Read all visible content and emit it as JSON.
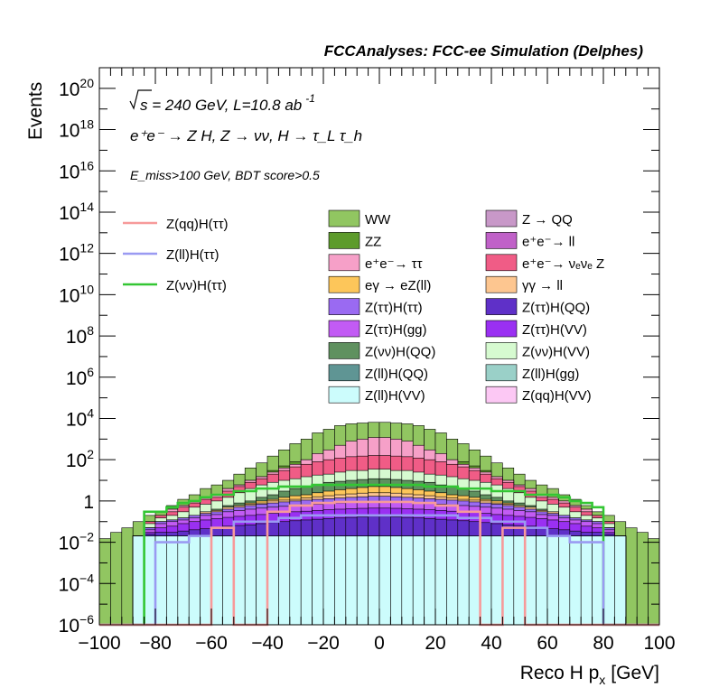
{
  "header": {
    "title": "FCCAnalyses: FCC-ee Simulation (Delphes)"
  },
  "annotations": {
    "sqrt_s": "s = 240 GeV, L=10.8 ab",
    "sqrt_s_exponent": "-1",
    "process": "e⁺e⁻ → Z H, Z → νν, H → τ_L τ_h",
    "selection": "E_miss>100 GeV, BDT score>0.5"
  },
  "colors": {
    "WW": "#91c661",
    "ZZ": "#5d9b2b",
    "ee_tautau": "#f6a0c8",
    "ZZ_nuenue": "#f05c86",
    "Z_QQ": "#c898c8",
    "ee_ll": "#c061c8",
    "egamma_eZ": "#fdc65a",
    "gammagamma_ll": "#fdc690",
    "ZtautauHtautau": "#9a6af2",
    "ZtautauHQQ": "#5f30c8",
    "ZtautauHgg": "#c25bf4",
    "ZtautauHVV": "#9a30f2",
    "ZnunuHQQ": "#5f915f",
    "ZnunuHVV": "#d6fad0",
    "ZllHQQ": "#5f9594",
    "ZllHgg": "#9ad0c8",
    "ZllHVV": "#ccfcfc",
    "ZqqHVV": "#fcc8f4",
    "line_ZqqHtautau": "#f79a9a",
    "line_ZllHtautau": "#9a9af2",
    "line_ZnunuHtautau": "#33c633"
  },
  "chart_data": {
    "type": "histogram-stacked-with-lines",
    "xlabel": "Reco H p",
    "xlabel_subscript": "x",
    "xlabel_unit": "[GeV]",
    "ylabel": "Events",
    "xlim": [
      -100,
      100
    ],
    "ylim": [
      1e-06,
      1e+21
    ],
    "yscale": "log",
    "x_tick_labels": [
      "−100",
      "−80",
      "−60",
      "−40",
      "−20",
      "0",
      "20",
      "40",
      "60",
      "80",
      "100"
    ],
    "y_tick_labels": [
      {
        "base": "10",
        "exp": "−6",
        "value": 1e-06
      },
      {
        "base": "10",
        "exp": "−4",
        "value": 0.0001
      },
      {
        "base": "10",
        "exp": "−2",
        "value": 0.01
      },
      {
        "base": "1",
        "exp": "",
        "value": 1
      },
      {
        "base": "10",
        "exp": "2",
        "value": 100.0
      },
      {
        "base": "10",
        "exp": "4",
        "value": 10000.0
      },
      {
        "base": "10",
        "exp": "6",
        "value": 1000000.0
      },
      {
        "base": "10",
        "exp": "8",
        "value": 100000000.0
      },
      {
        "base": "10",
        "exp": "10",
        "value": 10000000000.0
      },
      {
        "base": "10",
        "exp": "12",
        "value": 1000000000000.0
      },
      {
        "base": "10",
        "exp": "14",
        "value": 100000000000000.0
      },
      {
        "base": "10",
        "exp": "16",
        "value": 1e+16
      },
      {
        "base": "10",
        "exp": "18",
        "value": 1e+18
      },
      {
        "base": "10",
        "exp": "20",
        "value": 1e+20
      }
    ],
    "bin_edges": [
      -100,
      -96,
      -92,
      -88,
      -84,
      -80,
      -76,
      -72,
      -68,
      -64,
      -60,
      -56,
      -52,
      -48,
      -44,
      -40,
      -36,
      -32,
      -28,
      -24,
      -20,
      -16,
      -12,
      -8,
      -4,
      0,
      4,
      8,
      12,
      16,
      20,
      24,
      28,
      32,
      36,
      40,
      44,
      48,
      52,
      56,
      60,
      64,
      68,
      72,
      76,
      80,
      84,
      88,
      92,
      96,
      100
    ],
    "stack_order": [
      "ZllHVV",
      "ZqqHVV",
      "ZllHQQ",
      "ZtautauHQQ",
      "ZtautauHVV",
      "ZtautauHgg",
      "ZtautauHtautau",
      "gammagamma_ll",
      "egamma_eZ",
      "ZnunuHQQ",
      "ZnunuHVV",
      "ZZ_nuenue",
      "ee_tautau",
      "ZZ",
      "WW"
    ],
    "stack_totals": {
      "WW": [
        0.015,
        0.03,
        0.05,
        0.1,
        0.2,
        0.3,
        0.6,
        1.2,
        2,
        4,
        6,
        10,
        20,
        40,
        70,
        150,
        300,
        600,
        1000,
        2000,
        3000,
        4500,
        5500,
        6000,
        6500,
        6500,
        6000,
        5500,
        4500,
        3000,
        2000,
        1000,
        600,
        300,
        150,
        70,
        40,
        20,
        10,
        6,
        4,
        2,
        1.2,
        0.6,
        0.3,
        0.2,
        0.1,
        0.05,
        0.03,
        0.015
      ],
      "ZZ": [
        9e-07,
        9e-07,
        9e-07,
        0.02,
        0.1,
        0.2,
        0.4,
        0.6,
        1,
        1.5,
        2,
        4,
        6,
        10,
        15,
        30,
        50,
        80,
        100,
        200,
        300,
        400,
        500,
        550,
        600,
        600,
        550,
        500,
        400,
        300,
        200,
        100,
        80,
        50,
        30,
        15,
        10,
        6,
        4,
        2,
        1.5,
        1,
        0.6,
        0.4,
        0.2,
        0.1,
        0.02,
        9e-07,
        9e-07,
        9e-07
      ],
      "ee_tautau": [
        9e-07,
        9e-07,
        9e-07,
        0.02,
        0.1,
        0.2,
        0.4,
        0.6,
        1,
        1.5,
        2,
        4,
        6,
        10,
        15,
        25,
        40,
        60,
        100,
        200,
        300,
        500,
        800,
        1000,
        1200,
        1200,
        1000,
        800,
        500,
        300,
        200,
        100,
        60,
        40,
        25,
        15,
        10,
        6,
        4,
        2,
        1.5,
        1,
        0.6,
        0.4,
        0.2,
        0.1,
        0.02,
        9e-07,
        9e-07,
        9e-07
      ],
      "ZZ_nuenue": [
        9e-07,
        9e-07,
        9e-07,
        0.02,
        0.1,
        0.2,
        0.3,
        0.5,
        0.8,
        1.2,
        1.5,
        3,
        5,
        8,
        12,
        20,
        30,
        45,
        60,
        80,
        100,
        120,
        140,
        150,
        160,
        160,
        150,
        140,
        120,
        100,
        80,
        60,
        45,
        30,
        20,
        12,
        8,
        5,
        3,
        1.5,
        1.2,
        0.8,
        0.5,
        0.3,
        0.2,
        0.1,
        0.02,
        9e-07,
        9e-07,
        9e-07
      ],
      "ZnunuHVV": [
        9e-07,
        9e-07,
        9e-07,
        0.02,
        0.08,
        0.15,
        0.2,
        0.3,
        0.5,
        0.7,
        1,
        1.5,
        2.5,
        4,
        6,
        8,
        10,
        12,
        15,
        18,
        20,
        25,
        30,
        30,
        35,
        35,
        30,
        30,
        25,
        20,
        18,
        15,
        12,
        10,
        8,
        6,
        4,
        2.5,
        1.5,
        1,
        0.7,
        0.5,
        0.3,
        0.2,
        0.15,
        0.08,
        0.02,
        9e-07,
        9e-07,
        9e-07
      ],
      "ZnunuHQQ": [
        9e-07,
        9e-07,
        9e-07,
        0.02,
        0.05,
        0.1,
        0.12,
        0.15,
        0.2,
        0.3,
        0.4,
        0.6,
        0.8,
        1,
        1.5,
        2,
        3,
        4,
        5,
        6,
        8,
        9,
        10,
        11,
        12,
        12,
        11,
        10,
        9,
        8,
        6,
        5,
        4,
        3,
        2,
        1.5,
        1,
        0.8,
        0.6,
        0.4,
        0.3,
        0.2,
        0.15,
        0.12,
        0.1,
        0.05,
        0.02,
        9e-07,
        9e-07,
        9e-07
      ],
      "egamma_eZ": [
        9e-07,
        9e-07,
        9e-07,
        0.02,
        0.05,
        0.1,
        0.12,
        0.15,
        0.2,
        0.3,
        0.35,
        0.5,
        0.6,
        0.8,
        1,
        1.2,
        1.5,
        1.8,
        2,
        2.5,
        3,
        3.5,
        4,
        4.5,
        5,
        5,
        4.5,
        4,
        3.5,
        3,
        2.5,
        2,
        1.8,
        1.5,
        1.2,
        1,
        0.8,
        0.6,
        0.5,
        0.35,
        0.3,
        0.2,
        0.15,
        0.12,
        0.1,
        0.05,
        0.02,
        9e-07,
        9e-07,
        9e-07
      ],
      "gammagamma_ll": [
        9e-07,
        9e-07,
        9e-07,
        0.02,
        0.05,
        0.1,
        0.12,
        0.15,
        0.2,
        0.3,
        0.35,
        0.5,
        0.6,
        0.7,
        0.8,
        1,
        1.1,
        1.2,
        1.4,
        1.6,
        1.8,
        2,
        2.2,
        2.4,
        2.5,
        2.5,
        2.4,
        2.2,
        2,
        1.8,
        1.6,
        1.4,
        1.2,
        1.1,
        1,
        0.8,
        0.7,
        0.6,
        0.5,
        0.35,
        0.3,
        0.2,
        0.15,
        0.12,
        0.1,
        0.05,
        0.02,
        9e-07,
        9e-07,
        9e-07
      ],
      "ZtautauHtautau": [
        9e-07,
        9e-07,
        9e-07,
        0.02,
        0.05,
        0.1,
        0.12,
        0.15,
        0.2,
        0.25,
        0.3,
        0.4,
        0.5,
        0.6,
        0.7,
        0.8,
        0.9,
        1,
        1.1,
        1.2,
        1.3,
        1.4,
        1.5,
        1.6,
        1.7,
        1.7,
        1.6,
        1.5,
        1.4,
        1.3,
        1.2,
        1.1,
        1,
        0.9,
        0.8,
        0.7,
        0.6,
        0.5,
        0.4,
        0.3,
        0.25,
        0.2,
        0.15,
        0.12,
        0.1,
        0.05,
        0.02,
        9e-07,
        9e-07,
        9e-07
      ],
      "ZtautauHgg": [
        9e-07,
        9e-07,
        9e-07,
        0.02,
        0.04,
        0.08,
        0.1,
        0.12,
        0.15,
        0.2,
        0.22,
        0.3,
        0.35,
        0.4,
        0.45,
        0.5,
        0.55,
        0.6,
        0.65,
        0.7,
        0.75,
        0.8,
        0.85,
        0.9,
        0.95,
        0.95,
        0.9,
        0.85,
        0.8,
        0.75,
        0.7,
        0.65,
        0.6,
        0.55,
        0.5,
        0.45,
        0.4,
        0.35,
        0.3,
        0.22,
        0.2,
        0.15,
        0.12,
        0.1,
        0.08,
        0.04,
        0.02,
        9e-07,
        9e-07,
        9e-07
      ],
      "ZtautauHVV": [
        9e-07,
        9e-07,
        9e-07,
        0.02,
        0.03,
        0.05,
        0.06,
        0.08,
        0.1,
        0.12,
        0.14,
        0.16,
        0.18,
        0.2,
        0.22,
        0.25,
        0.28,
        0.3,
        0.32,
        0.35,
        0.38,
        0.4,
        0.42,
        0.44,
        0.45,
        0.45,
        0.44,
        0.42,
        0.4,
        0.38,
        0.35,
        0.32,
        0.3,
        0.28,
        0.25,
        0.22,
        0.2,
        0.18,
        0.16,
        0.14,
        0.12,
        0.1,
        0.08,
        0.06,
        0.05,
        0.03,
        0.02,
        9e-07,
        9e-07,
        9e-07
      ],
      "ZtautauHQQ": [
        9e-07,
        9e-07,
        9e-07,
        0.02,
        0.025,
        0.03,
        0.03,
        0.035,
        0.04,
        0.045,
        0.05,
        0.06,
        0.065,
        0.07,
        0.08,
        0.09,
        0.1,
        0.11,
        0.12,
        0.13,
        0.14,
        0.15,
        0.16,
        0.17,
        0.18,
        0.18,
        0.17,
        0.16,
        0.15,
        0.14,
        0.13,
        0.12,
        0.11,
        0.1,
        0.09,
        0.08,
        0.07,
        0.065,
        0.06,
        0.05,
        0.045,
        0.04,
        0.035,
        0.03,
        0.03,
        0.025,
        0.02,
        9e-07,
        9e-07,
        9e-07
      ],
      "ZllHQQ": [
        9e-07,
        9e-07,
        9e-07,
        0.02,
        0.02,
        0.02,
        0.02,
        0.02,
        0.02,
        0.02,
        0.02,
        0.02,
        0.02,
        0.02,
        0.02,
        0.02,
        0.02,
        0.02,
        0.02,
        0.02,
        0.02,
        0.02,
        0.02,
        0.02,
        0.02,
        0.02,
        0.02,
        0.02,
        0.02,
        0.02,
        0.02,
        0.02,
        0.02,
        0.02,
        0.02,
        0.02,
        0.02,
        0.02,
        0.02,
        0.02,
        0.02,
        0.02,
        0.02,
        0.02,
        0.02,
        0.02,
        0.02,
        9e-07,
        9e-07,
        9e-07
      ],
      "ZqqHVV": [
        9e-07,
        9e-07,
        9e-07,
        0.02,
        0.02,
        0.02,
        0.02,
        0.02,
        0.02,
        0.02,
        0.02,
        0.02,
        0.02,
        0.02,
        0.02,
        0.02,
        0.02,
        0.02,
        0.02,
        0.02,
        0.02,
        0.02,
        0.02,
        0.02,
        0.02,
        0.02,
        0.02,
        0.02,
        0.02,
        0.02,
        0.02,
        0.02,
        0.02,
        0.02,
        0.02,
        0.02,
        0.02,
        0.02,
        0.02,
        0.02,
        0.02,
        0.02,
        0.02,
        0.02,
        0.02,
        0.02,
        0.02,
        9e-07,
        9e-07,
        9e-07
      ],
      "ZllHVV": [
        9e-07,
        9e-07,
        9e-07,
        0.02,
        0.02,
        0.02,
        0.02,
        0.02,
        0.02,
        0.02,
        0.02,
        0.02,
        0.02,
        0.02,
        0.02,
        0.02,
        0.02,
        0.02,
        0.02,
        0.02,
        0.02,
        0.02,
        0.02,
        0.02,
        0.02,
        0.02,
        0.02,
        0.02,
        0.02,
        0.02,
        0.02,
        0.02,
        0.02,
        0.02,
        0.02,
        0.02,
        0.02,
        0.02,
        0.02,
        0.02,
        0.02,
        0.02,
        0.02,
        0.02,
        0.02,
        0.02,
        0.02,
        9e-07,
        9e-07,
        9e-07
      ]
    },
    "lines": {
      "line_ZnunuHtautau": [
        9e-07,
        9e-07,
        9e-07,
        9e-07,
        0.3,
        0.3,
        0.5,
        0.8,
        1,
        1.5,
        2,
        2,
        3,
        3,
        4,
        4,
        5,
        5,
        5,
        6,
        6,
        6,
        6,
        6,
        6,
        6,
        6,
        6,
        6,
        5,
        5,
        5,
        4,
        4,
        4,
        3,
        3,
        3,
        2,
        2,
        2,
        1.5,
        1,
        0.8,
        0.5,
        9e-07,
        9e-07,
        9e-07,
        9e-07,
        9e-07
      ],
      "line_ZllHtautau": [
        9e-07,
        9e-07,
        9e-07,
        9e-07,
        9e-07,
        0.01,
        0.01,
        0.01,
        0.02,
        0.02,
        0.05,
        0.05,
        0.1,
        0.1,
        0.1,
        0.1,
        0.15,
        0.15,
        0.2,
        0.2,
        0.2,
        0.2,
        0.2,
        0.2,
        0.2,
        0.2,
        0.2,
        0.2,
        0.2,
        0.2,
        0.2,
        0.2,
        0.15,
        0.15,
        0.15,
        0.1,
        0.1,
        0.1,
        0.05,
        0.05,
        0.02,
        0.02,
        0.01,
        0.01,
        0.01,
        9e-07,
        9e-07,
        9e-07,
        9e-07,
        9e-07
      ],
      "line_ZqqHtautau": [
        9e-07,
        9e-07,
        9e-07,
        9e-07,
        9e-07,
        9e-07,
        9e-07,
        9e-07,
        9e-07,
        9e-07,
        0.05,
        0.05,
        9e-07,
        9e-07,
        9e-07,
        0.3,
        0.3,
        0.6,
        0.6,
        0.8,
        0.8,
        0.9,
        0.9,
        0.9,
        0.9,
        0.9,
        0.9,
        0.9,
        0.8,
        0.8,
        0.6,
        0.6,
        0.3,
        0.3,
        9e-07,
        9e-07,
        0.05,
        0.05,
        9e-07,
        9e-07,
        9e-07,
        9e-07,
        9e-07,
        9e-07,
        9e-07,
        9e-07,
        9e-07,
        9e-07,
        9e-07,
        9e-07
      ]
    },
    "legend_lines": [
      {
        "key": "line_ZqqHtautau",
        "label": "Z(qq)H(ττ)"
      },
      {
        "key": "line_ZllHtautau",
        "label": "Z(ll)H(ττ)"
      },
      {
        "key": "line_ZnunuHtautau",
        "label": "Z(νν)H(ττ)"
      }
    ],
    "legend_boxes": [
      {
        "key": "WW",
        "label": "WW"
      },
      {
        "key": "Z_QQ",
        "label": "Z → QQ"
      },
      {
        "key": "ZZ",
        "label": "ZZ"
      },
      {
        "key": "ee_ll",
        "label": "e⁺e⁻→ ll"
      },
      {
        "key": "ee_tautau",
        "label": "e⁺e⁻→ ττ"
      },
      {
        "key": "ZZ_nuenue",
        "label": "e⁺e⁻→ νₑνₑ Z"
      },
      {
        "key": "egamma_eZ",
        "label": "eγ → eZ(ll)"
      },
      {
        "key": "gammagamma_ll",
        "label": "γγ → ll"
      },
      {
        "key": "ZtautauHtautau",
        "label": "Z(ττ)H(ττ)"
      },
      {
        "key": "ZtautauHQQ",
        "label": "Z(ττ)H(QQ)"
      },
      {
        "key": "ZtautauHgg",
        "label": "Z(ττ)H(gg)"
      },
      {
        "key": "ZtautauHVV",
        "label": "Z(ττ)H(VV)"
      },
      {
        "key": "ZnunuHQQ",
        "label": "Z(νν)H(QQ)"
      },
      {
        "key": "ZnunuHVV",
        "label": "Z(νν)H(VV)"
      },
      {
        "key": "ZllHQQ",
        "label": "Z(ll)H(QQ)"
      },
      {
        "key": "ZllHgg",
        "label": "Z(ll)H(gg)"
      },
      {
        "key": "ZllHVV",
        "label": "Z(ll)H(VV)"
      },
      {
        "key": "ZqqHVV",
        "label": "Z(qq)H(VV)"
      }
    ]
  }
}
